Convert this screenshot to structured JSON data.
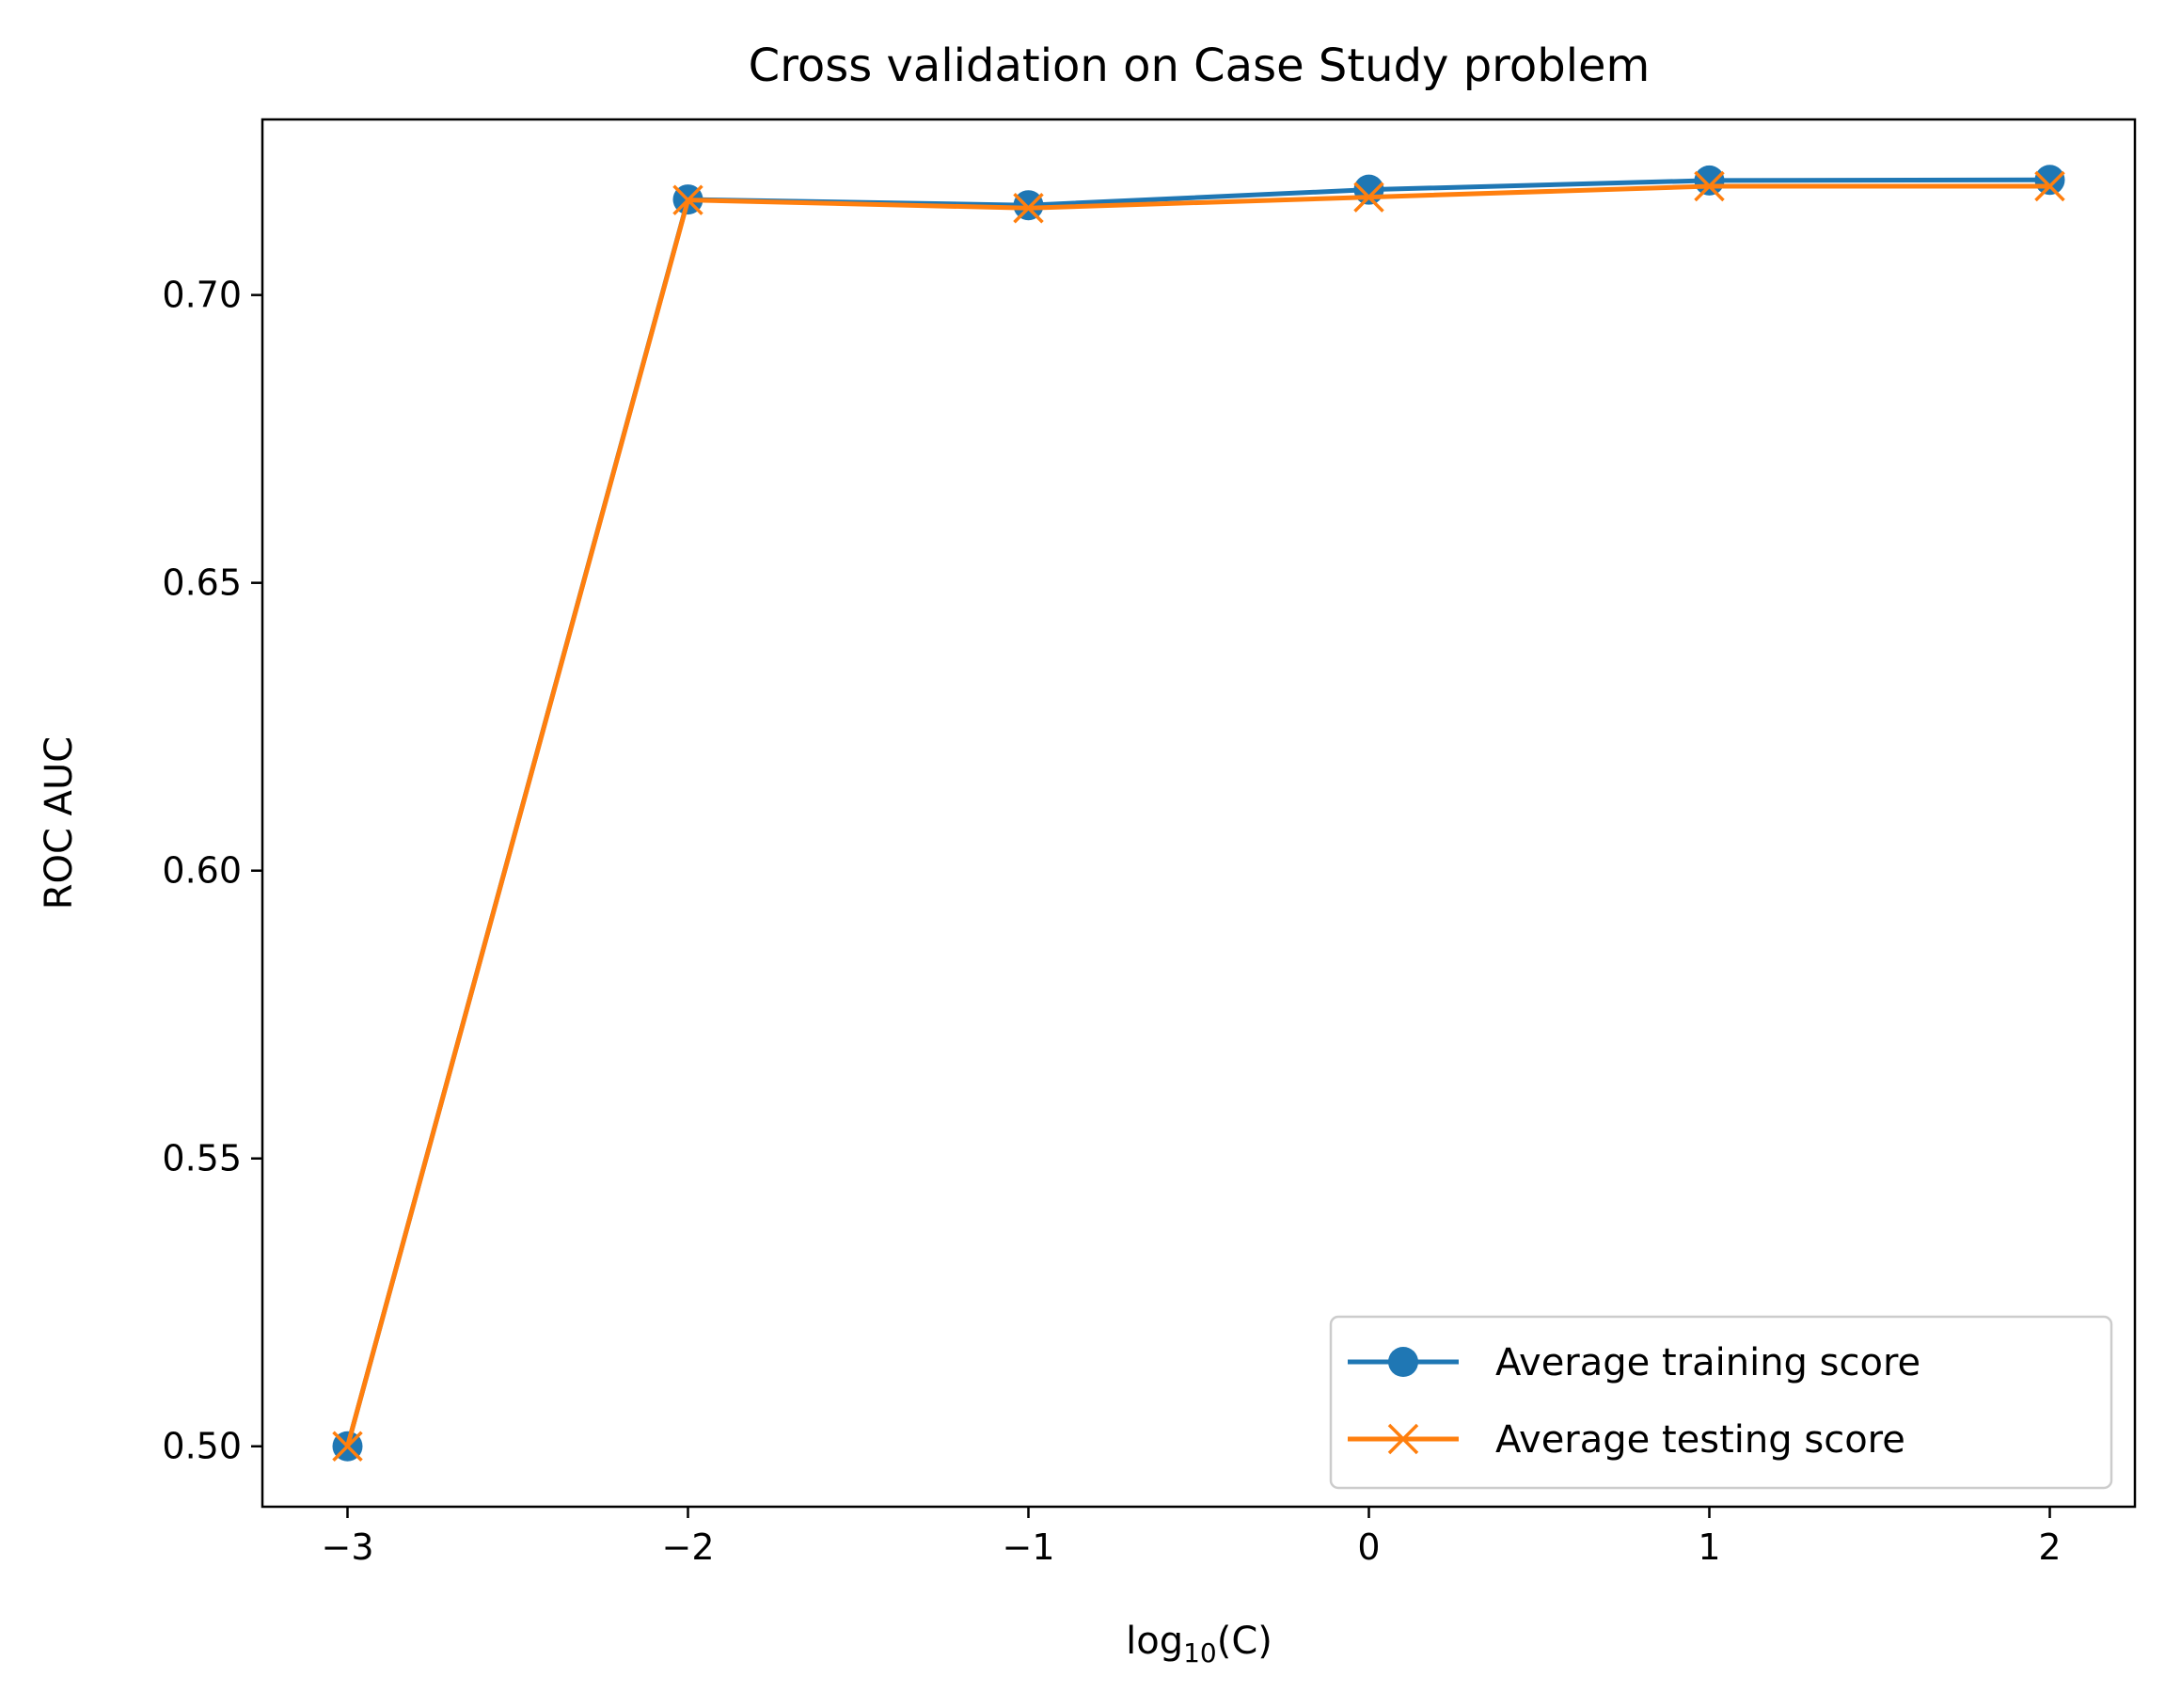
{
  "chart_data": {
    "type": "line",
    "title": "Cross validation on Case Study problem",
    "xlabel": "log",
    "xlabel_sub": "10",
    "xlabel_suffix": "(C)",
    "ylabel": "ROC AUC",
    "xlim": [
      -3.25,
      2.25
    ],
    "ylim": [
      0.4895,
      0.7305
    ],
    "xticks": [
      -3,
      -2,
      -1,
      0,
      1,
      2
    ],
    "xtick_labels": [
      "−3",
      "−2",
      "−1",
      "0",
      "1",
      "2"
    ],
    "yticks": [
      0.5,
      0.55,
      0.6,
      0.65,
      0.7
    ],
    "ytick_labels": [
      "0.50",
      "0.55",
      "0.60",
      "0.65",
      "0.70"
    ],
    "x": [
      -3,
      -2,
      -1,
      0,
      1,
      2
    ],
    "series": [
      {
        "name": "Average training score",
        "values": [
          0.5,
          0.7166,
          0.7156,
          0.7183,
          0.7199,
          0.72
        ],
        "color": "#1f77b4",
        "marker": "circle"
      },
      {
        "name": "Average testing score",
        "values": [
          0.5,
          0.7165,
          0.7151,
          0.717,
          0.7189,
          0.7189
        ],
        "color": "#ff7f0e",
        "marker": "x"
      }
    ],
    "grid": false,
    "legend": "lower-right"
  }
}
